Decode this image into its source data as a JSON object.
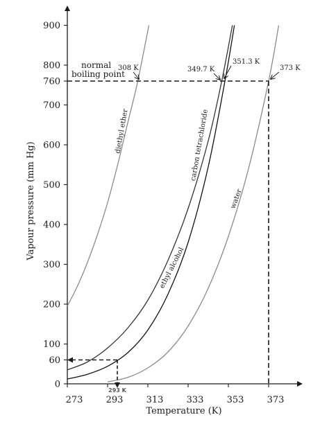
{
  "chart_data": {
    "type": "line",
    "xlabel": "Temperature (K)",
    "ylabel": "Vapour pressure (mm Hg)",
    "xlim": [
      273,
      395
    ],
    "ylim": [
      0,
      950
    ],
    "x_ticks": [
      273,
      293,
      313,
      333,
      353,
      373
    ],
    "y_ticks": [
      0,
      60,
      100,
      200,
      300,
      400,
      500,
      600,
      700,
      760,
      800,
      900
    ],
    "series": [
      {
        "name": "diethyl ether",
        "color": "#8a8a8a",
        "x": [
          273,
          278,
          283,
          288,
          293,
          298,
          303,
          308,
          313.5
        ],
        "y": [
          195,
          245,
          305,
          375,
          455,
          550,
          655,
          760,
          900
        ]
      },
      {
        "name": "carbon tetrachloride",
        "color": "#333333",
        "x": [
          273,
          283,
          293,
          303,
          313,
          323,
          333,
          343,
          349.7,
          355
        ],
        "y": [
          35,
          55,
          90,
          140,
          210,
          310,
          440,
          610,
          760,
          900
        ]
      },
      {
        "name": "ethyl alcohol",
        "color": "#111111",
        "x": [
          273,
          283,
          293,
          303,
          313,
          323,
          333,
          343,
          351.3,
          356
        ],
        "y": [
          12,
          24,
          44,
          78,
          135,
          225,
          355,
          545,
          760,
          900
        ]
      },
      {
        "name": "water",
        "color": "#8a8a8a",
        "x": [
          293,
          303,
          313,
          323,
          333,
          343,
          353,
          363,
          373,
          378
        ],
        "y": [
          5,
          16,
          40,
          80,
          145,
          240,
          370,
          540,
          760,
          900
        ]
      }
    ],
    "annotations": {
      "normal_boiling_point": {
        "line1": "normal",
        "line2": "boiling point",
        "pressure": 760
      },
      "boiling_points": [
        {
          "label": "308 K",
          "x": 308
        },
        {
          "label": "349.7 K",
          "x": 349.7
        },
        {
          "label": "351.3 K",
          "x": 351.3
        },
        {
          "label": "373 K",
          "x": 373
        }
      ],
      "low_point": {
        "pressure": 60,
        "x": 293,
        "label": "293 K"
      }
    }
  }
}
